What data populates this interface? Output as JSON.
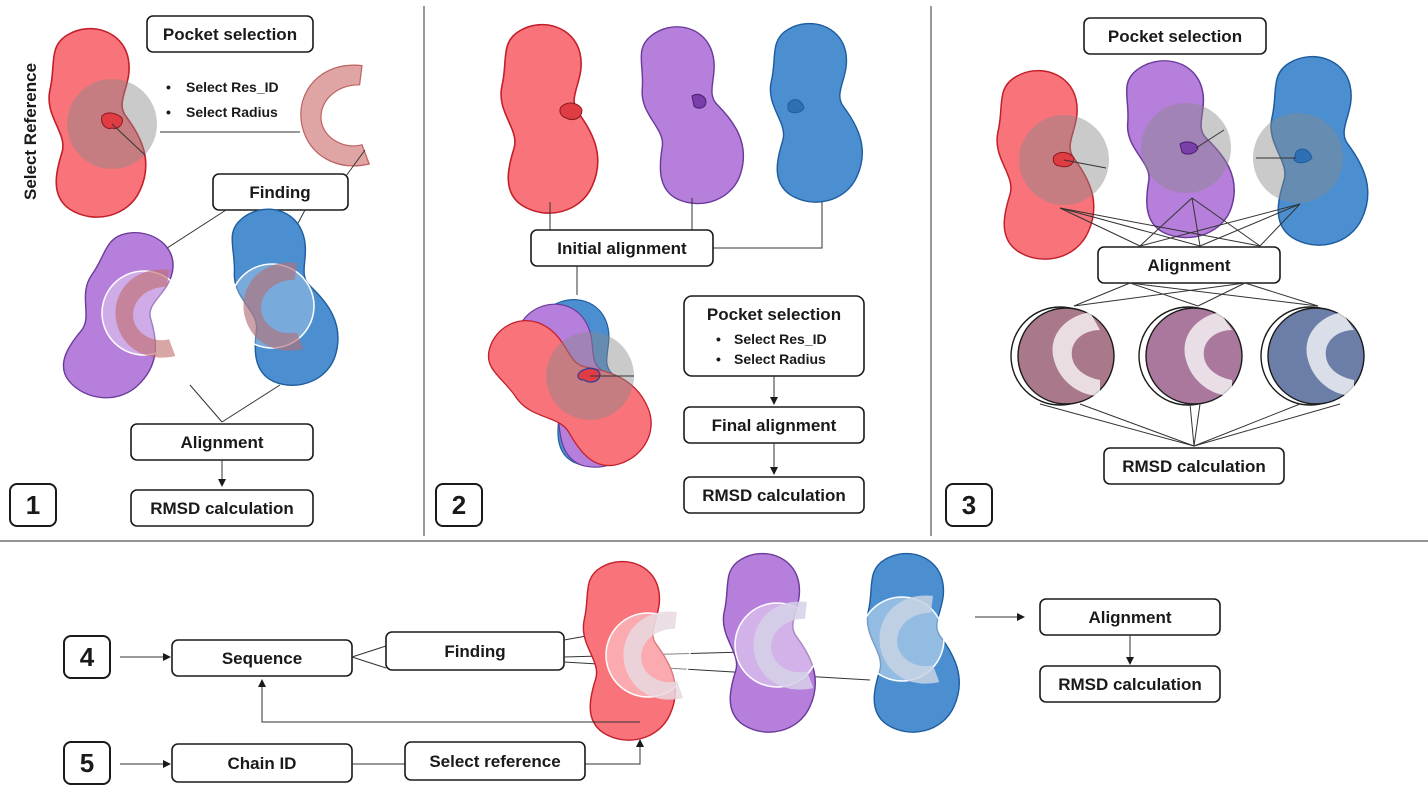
{
  "colors": {
    "red": "#f8747a",
    "red_stroke": "#c41e2a",
    "purple": "#b57fdb",
    "purple_stroke": "#6a3a9a",
    "blue": "#4b8fd1",
    "blue_stroke": "#1f5c9e",
    "pocket": "#f4a3a0"
  },
  "panel1": {
    "number": "1",
    "side_label": "Select Reference",
    "pocket_selection": "Pocket selection",
    "bullets": [
      "Select Res_ID",
      "Select Radius"
    ],
    "finding": "Finding",
    "alignment": "Alignment",
    "rmsd": "RMSD calculation"
  },
  "panel2": {
    "number": "2",
    "initial_alignment": "Initial alignment",
    "pocket_selection": "Pocket selection",
    "bullets": [
      "Select Res_ID",
      "Select Radius"
    ],
    "final_alignment": "Final alignment",
    "rmsd": "RMSD calculation"
  },
  "panel3": {
    "number": "3",
    "pocket_selection": "Pocket selection",
    "alignment": "Alignment",
    "rmsd": "RMSD calculation"
  },
  "panel45": {
    "number4": "4",
    "number5": "5",
    "sequence": "Sequence",
    "finding": "Finding",
    "chain_id": "Chain ID",
    "select_reference": "Select reference",
    "alignment": "Alignment",
    "rmsd": "RMSD calculation"
  }
}
